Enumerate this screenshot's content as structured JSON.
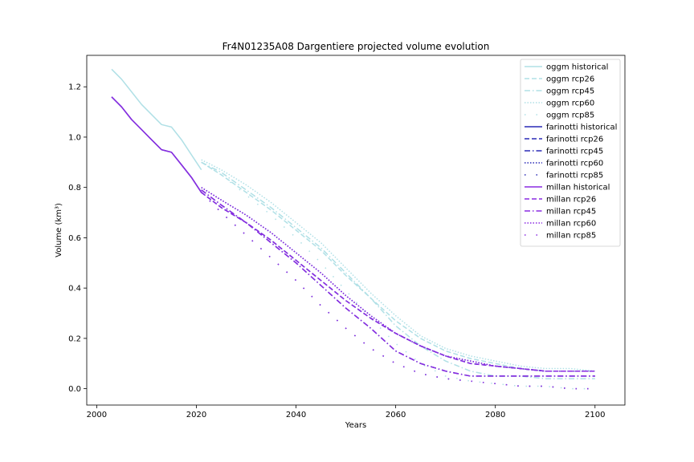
{
  "chart_data": {
    "type": "line",
    "title": "Fr4N01235A08 Dargentiere projected volume evolution",
    "xlabel": "Years",
    "ylabel": "Volume (km³)",
    "xlim": [
      1998,
      2106
    ],
    "ylim": [
      -0.065,
      1.325
    ],
    "xticks": [
      2000,
      2020,
      2040,
      2060,
      2080,
      2100
    ],
    "yticks": [
      0.0,
      0.2,
      0.4,
      0.6,
      0.8,
      1.0,
      1.2
    ],
    "ytick_labels": [
      "0.0",
      "0.2",
      "0.4",
      "0.6",
      "0.8",
      "1.0",
      "1.2"
    ],
    "grid": false,
    "legend_position": "top-right",
    "colors": {
      "oggm": "#b0e0e6",
      "farinotti": "#2a2ab5",
      "millan": "#8a2be2"
    },
    "series": [
      {
        "name": "oggm historical",
        "group": "oggm",
        "style": "solid",
        "x": [
          2003,
          2005,
          2007,
          2009,
          2011,
          2013,
          2015,
          2017,
          2019,
          2021
        ],
        "y": [
          1.27,
          1.23,
          1.18,
          1.13,
          1.09,
          1.05,
          1.04,
          0.99,
          0.93,
          0.87
        ]
      },
      {
        "name": "oggm rcp26",
        "group": "oggm",
        "style": "dashed",
        "x": [
          2021,
          2025,
          2030,
          2035,
          2040,
          2045,
          2050,
          2055,
          2060,
          2065,
          2070,
          2075,
          2080,
          2085,
          2090,
          2095,
          2100
        ],
        "y": [
          0.9,
          0.85,
          0.78,
          0.71,
          0.63,
          0.55,
          0.45,
          0.36,
          0.27,
          0.2,
          0.15,
          0.12,
          0.1,
          0.08,
          0.07,
          0.07,
          0.07
        ]
      },
      {
        "name": "oggm rcp45",
        "group": "oggm",
        "style": "dashdot",
        "x": [
          2021,
          2025,
          2030,
          2035,
          2040,
          2045,
          2050,
          2055,
          2060,
          2065,
          2070,
          2075,
          2080,
          2085,
          2090,
          2095,
          2100
        ],
        "y": [
          0.9,
          0.86,
          0.79,
          0.72,
          0.64,
          0.56,
          0.46,
          0.36,
          0.25,
          0.17,
          0.11,
          0.07,
          0.05,
          0.05,
          0.04,
          0.04,
          0.04
        ]
      },
      {
        "name": "oggm rcp60",
        "group": "oggm",
        "style": "dotted",
        "x": [
          2021,
          2025,
          2030,
          2035,
          2040,
          2045,
          2050,
          2055,
          2060,
          2065,
          2070,
          2075,
          2080,
          2085,
          2090,
          2095,
          2100
        ],
        "y": [
          0.91,
          0.87,
          0.81,
          0.74,
          0.66,
          0.58,
          0.48,
          0.38,
          0.29,
          0.21,
          0.16,
          0.13,
          0.11,
          0.09,
          0.08,
          0.08,
          0.07
        ]
      },
      {
        "name": "oggm rcp85",
        "group": "oggm",
        "style": "sparse",
        "x": [
          2021,
          2025,
          2030,
          2035,
          2040,
          2045,
          2050,
          2055,
          2060,
          2065,
          2070,
          2075,
          2080,
          2085,
          2090,
          2095,
          2100
        ],
        "y": [
          0.9,
          0.85,
          0.77,
          0.69,
          0.6,
          0.5,
          0.39,
          0.28,
          0.18,
          0.1,
          0.05,
          0.03,
          0.02,
          0.01,
          0.01,
          0.0,
          0.0
        ]
      },
      {
        "name": "farinotti historical",
        "group": "farinotti",
        "style": "solid",
        "x": [
          2003,
          2005,
          2007,
          2009,
          2011,
          2013,
          2015,
          2017,
          2019,
          2021
        ],
        "y": [
          1.16,
          1.12,
          1.07,
          1.03,
          0.99,
          0.95,
          0.94,
          0.89,
          0.84,
          0.78
        ]
      },
      {
        "name": "farinotti rcp26",
        "group": "farinotti",
        "style": "dashed",
        "x": [
          2021,
          2025,
          2030,
          2035,
          2040,
          2045,
          2050,
          2055,
          2060,
          2065,
          2070,
          2075,
          2080,
          2085,
          2090,
          2095,
          2100
        ],
        "y": [
          0.78,
          0.72,
          0.66,
          0.59,
          0.51,
          0.43,
          0.35,
          0.28,
          0.22,
          0.17,
          0.13,
          0.1,
          0.09,
          0.08,
          0.07,
          0.07,
          0.07
        ]
      },
      {
        "name": "farinotti rcp45",
        "group": "farinotti",
        "style": "dashdot",
        "x": [
          2021,
          2025,
          2030,
          2035,
          2040,
          2045,
          2050,
          2055,
          2060,
          2065,
          2070,
          2075,
          2080,
          2085,
          2090,
          2095,
          2100
        ],
        "y": [
          0.79,
          0.73,
          0.66,
          0.58,
          0.5,
          0.41,
          0.32,
          0.24,
          0.15,
          0.1,
          0.07,
          0.05,
          0.05,
          0.05,
          0.05,
          0.05,
          0.05
        ]
      },
      {
        "name": "farinotti rcp60",
        "group": "farinotti",
        "style": "dotted",
        "x": [
          2021,
          2025,
          2030,
          2035,
          2040,
          2045,
          2050,
          2055,
          2060,
          2065,
          2070,
          2075,
          2080,
          2085,
          2090,
          2095,
          2100
        ],
        "y": [
          0.8,
          0.75,
          0.69,
          0.62,
          0.54,
          0.46,
          0.37,
          0.29,
          0.22,
          0.17,
          0.13,
          0.11,
          0.09,
          0.08,
          0.07,
          0.07,
          0.07
        ]
      },
      {
        "name": "farinotti rcp85",
        "group": "farinotti",
        "style": "sparse",
        "x": [
          2021,
          2025,
          2030,
          2035,
          2040,
          2045,
          2050,
          2055,
          2060,
          2065,
          2070,
          2075,
          2080,
          2085,
          2090,
          2095,
          2100
        ],
        "y": [
          0.78,
          0.7,
          0.61,
          0.52,
          0.43,
          0.33,
          0.24,
          0.16,
          0.1,
          0.06,
          0.04,
          0.03,
          0.02,
          0.01,
          0.01,
          0.0,
          0.0
        ]
      },
      {
        "name": "millan historical",
        "group": "millan",
        "style": "solid",
        "x": [
          2003,
          2005,
          2007,
          2009,
          2011,
          2013,
          2015,
          2017,
          2019,
          2021
        ],
        "y": [
          1.16,
          1.12,
          1.07,
          1.03,
          0.99,
          0.95,
          0.94,
          0.89,
          0.84,
          0.78
        ]
      },
      {
        "name": "millan rcp26",
        "group": "millan",
        "style": "dashed",
        "x": [
          2021,
          2025,
          2030,
          2035,
          2040,
          2045,
          2050,
          2055,
          2060,
          2065,
          2070,
          2075,
          2080,
          2085,
          2090,
          2095,
          2100
        ],
        "y": [
          0.78,
          0.72,
          0.66,
          0.59,
          0.51,
          0.43,
          0.35,
          0.28,
          0.22,
          0.17,
          0.13,
          0.1,
          0.09,
          0.08,
          0.07,
          0.07,
          0.07
        ]
      },
      {
        "name": "millan rcp45",
        "group": "millan",
        "style": "dashdot",
        "x": [
          2021,
          2025,
          2030,
          2035,
          2040,
          2045,
          2050,
          2055,
          2060,
          2065,
          2070,
          2075,
          2080,
          2085,
          2090,
          2095,
          2100
        ],
        "y": [
          0.79,
          0.73,
          0.66,
          0.58,
          0.5,
          0.41,
          0.32,
          0.24,
          0.15,
          0.1,
          0.07,
          0.05,
          0.05,
          0.05,
          0.05,
          0.05,
          0.05
        ]
      },
      {
        "name": "millan rcp60",
        "group": "millan",
        "style": "dotted",
        "x": [
          2021,
          2025,
          2030,
          2035,
          2040,
          2045,
          2050,
          2055,
          2060,
          2065,
          2070,
          2075,
          2080,
          2085,
          2090,
          2095,
          2100
        ],
        "y": [
          0.8,
          0.75,
          0.69,
          0.62,
          0.54,
          0.46,
          0.37,
          0.29,
          0.22,
          0.17,
          0.13,
          0.11,
          0.09,
          0.08,
          0.07,
          0.07,
          0.07
        ]
      },
      {
        "name": "millan rcp85",
        "group": "millan",
        "style": "sparse",
        "x": [
          2021,
          2025,
          2030,
          2035,
          2040,
          2045,
          2050,
          2055,
          2060,
          2065,
          2070,
          2075,
          2080,
          2085,
          2090,
          2095,
          2100
        ],
        "y": [
          0.78,
          0.7,
          0.61,
          0.52,
          0.43,
          0.33,
          0.24,
          0.16,
          0.1,
          0.06,
          0.04,
          0.03,
          0.02,
          0.01,
          0.01,
          0.0,
          0.0
        ]
      }
    ]
  }
}
